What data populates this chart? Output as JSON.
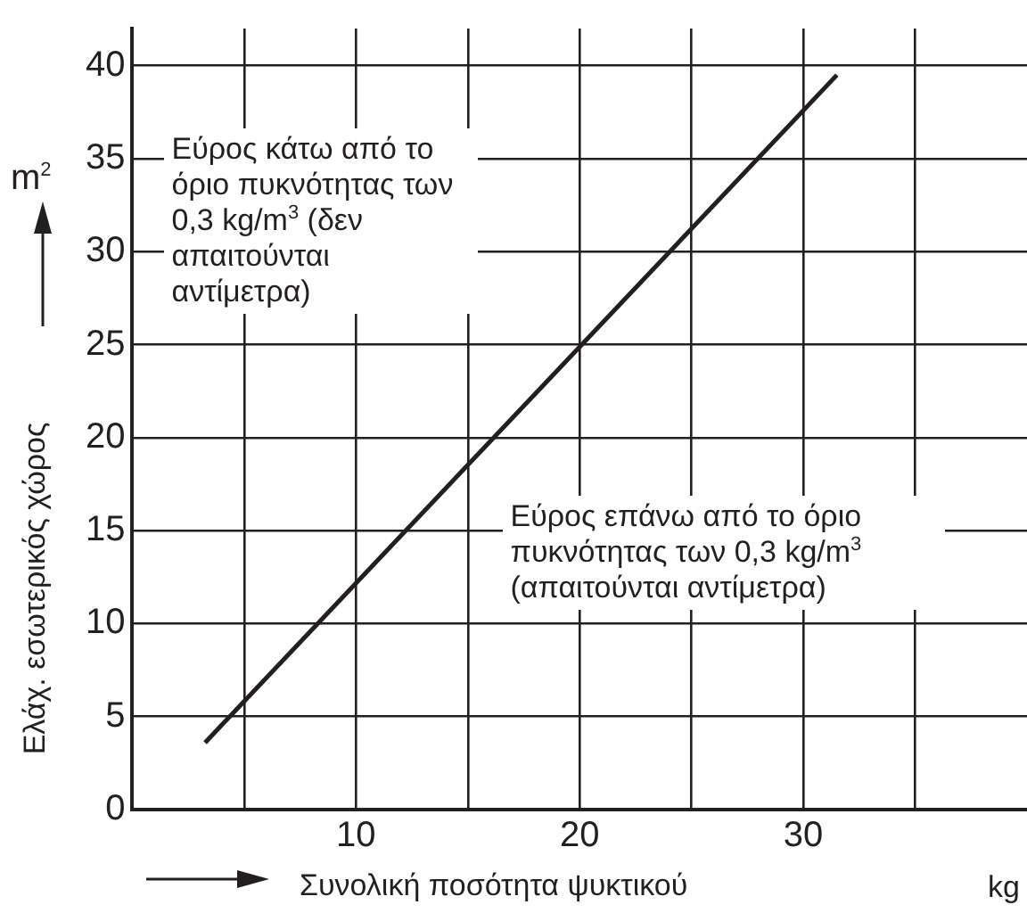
{
  "chart_data": {
    "type": "line",
    "xlabel": "Συνολική ποσότητα ψυκτικού",
    "ylabel": "Ελάχ. εσωτερικός χώρος",
    "series": [
      {
        "color": "#231f20",
        "x": [
          3.25,
          31.5
        ],
        "values": [
          3.6,
          39.5
        ]
      }
    ],
    "xlim": [
      0,
      40
    ],
    "xticks": [
      {
        "value": 5,
        "label": null
      },
      10,
      {
        "value": 15,
        "label": null
      },
      20,
      {
        "value": 25,
        "label": null
      },
      30,
      {
        "value": 35,
        "label": null
      }
    ],
    "ylim": [
      0,
      42
    ],
    "yticks": [
      0,
      5,
      10,
      15,
      20,
      25,
      30,
      35,
      40
    ],
    "grid": true,
    "legend": false,
    "marker": "none",
    "line_style": "solid",
    "annotations": [
      "Εύρος κάτω από το όριο πυκνότητας των 0,3 kg/m$^{3}$ (δεν απαιτούνται αντίμετρα)",
      "Εύρος επάνω από το όριο πυκνότητας των 0,3 kg/m$^{3}$ (απαιτούνται αντίμετρα)",
      "kg",
      "m$^{2}$"
    ]
  }
}
